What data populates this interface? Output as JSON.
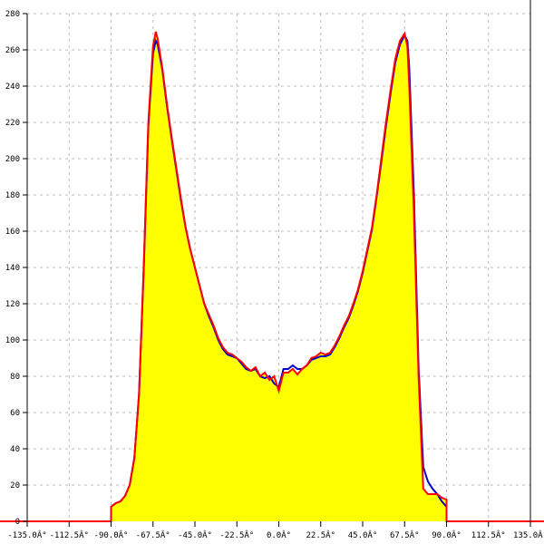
{
  "chart_data": {
    "type": "area",
    "title": "",
    "xlabel": "",
    "ylabel": "",
    "xlim": [
      -135,
      135
    ],
    "ylim": [
      0,
      280
    ],
    "grid": true,
    "x_ticks": [
      -135,
      -112.5,
      -90,
      -67.5,
      -45,
      -22.5,
      0,
      22.5,
      45,
      67.5,
      90,
      112.5,
      135
    ],
    "x_tick_labels": [
      "-135.0Â°",
      "-112.5Â°",
      "-90.0Â°",
      "-67.5Â°",
      "-45.0Â°",
      "-22.5Â°",
      "0.0Â°",
      "22.5Â°",
      "45.0Â°",
      "67.5Â°",
      "90.0Â°",
      "112.5Â°",
      "135.0Â°"
    ],
    "y_ticks": [
      0,
      20,
      40,
      60,
      80,
      100,
      120,
      140,
      160,
      180,
      200,
      220,
      240,
      260,
      280
    ],
    "y_tick_labels": [
      "0",
      "20",
      "40",
      "60",
      "80",
      "100",
      "120",
      "140",
      "160",
      "180",
      "200",
      "220",
      "240",
      "260",
      "280"
    ],
    "colors": {
      "fill": "#ffff00",
      "red_series": "#ff0000",
      "blue_series": "#0000cc",
      "grid": "#bbbbbb",
      "axis": "#000000"
    },
    "x": [
      -90,
      -87.5,
      -85,
      -82.5,
      -80,
      -77.5,
      -75,
      -72.5,
      -70,
      -67.5,
      -66,
      -65,
      -62.5,
      -60,
      -57.5,
      -55,
      -52.5,
      -50,
      -47.5,
      -45,
      -42.5,
      -40,
      -37.5,
      -35,
      -32.5,
      -30,
      -27.5,
      -25,
      -22.5,
      -20,
      -17.5,
      -15,
      -12.5,
      -10,
      -7.5,
      -5,
      -2.5,
      0,
      2.5,
      5,
      7.5,
      10,
      12.5,
      15,
      17.5,
      20,
      22.5,
      25,
      27.5,
      30,
      32.5,
      35,
      37.5,
      40,
      42.5,
      45,
      47.5,
      50,
      52.5,
      55,
      57.5,
      60,
      62.5,
      65,
      67.5,
      69,
      70,
      72.5,
      75,
      77.5,
      80,
      82.5,
      85,
      87.5,
      90
    ],
    "series": [
      {
        "values": [
          8,
          10,
          11,
          14,
          20,
          35,
          70,
          140,
          220,
          262,
          270,
          266,
          250,
          230,
          212,
          195,
          178,
          162,
          150,
          140,
          130,
          120,
          114,
          108,
          101,
          96,
          93,
          92,
          90,
          88,
          85,
          83,
          85,
          80,
          82,
          78,
          80,
          72,
          82,
          82,
          84,
          81,
          84,
          86,
          90,
          91,
          93,
          92,
          93,
          97,
          102,
          108,
          113,
          120,
          128,
          138,
          150,
          162,
          180,
          200,
          220,
          238,
          255,
          265,
          269,
          262,
          240,
          170,
          80,
          18,
          15,
          15,
          15,
          13,
          12
        ]
      },
      {
        "values": [
          8,
          10,
          11,
          14,
          20,
          35,
          70,
          138,
          218,
          258,
          265,
          263,
          249,
          229,
          211,
          194,
          177,
          162,
          150,
          140,
          130,
          120,
          113,
          107,
          100,
          95,
          92,
          91,
          90,
          87,
          84,
          83,
          84,
          80,
          79,
          80,
          76,
          74,
          84,
          84,
          86,
          84,
          84,
          86,
          89,
          90,
          91,
          91,
          92,
          96,
          101,
          107,
          112,
          119,
          127,
          137,
          149,
          161,
          179,
          198,
          218,
          236,
          253,
          263,
          268,
          265,
          250,
          180,
          85,
          30,
          22,
          18,
          15,
          11,
          8
        ]
      }
    ]
  }
}
